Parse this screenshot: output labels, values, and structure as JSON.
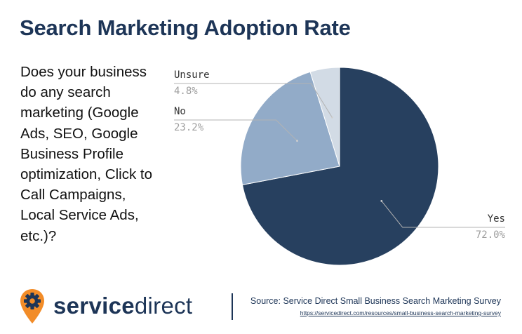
{
  "title": "Search Marketing Adoption Rate",
  "question": "Does your business do any search marketing (Google Ads, SEO, Google Business Profile optimization, Click to Call Campaigns, Local Service Ads, etc.)?",
  "chart_data": {
    "type": "pie",
    "slices": [
      {
        "label": "Yes",
        "value": 72.0,
        "display": "72.0%",
        "color": "#27405f"
      },
      {
        "label": "No",
        "value": 23.2,
        "display": "23.2%",
        "color": "#92abc8"
      },
      {
        "label": "Unsure",
        "value": 4.8,
        "display": "4.8%",
        "color": "#d2dbe5"
      }
    ],
    "start": "12 o'clock",
    "direction": "clockwise"
  },
  "footer": {
    "logo_part1": "service",
    "logo_part2": "direct",
    "source": "Source: Service Direct Small Business Search Marketing Survey",
    "source_url": "https://servicedirect.com/resources/small-business-search-marketing-survey",
    "logo_colors": {
      "pin": "#f28c28",
      "text": "#1d3557"
    }
  }
}
